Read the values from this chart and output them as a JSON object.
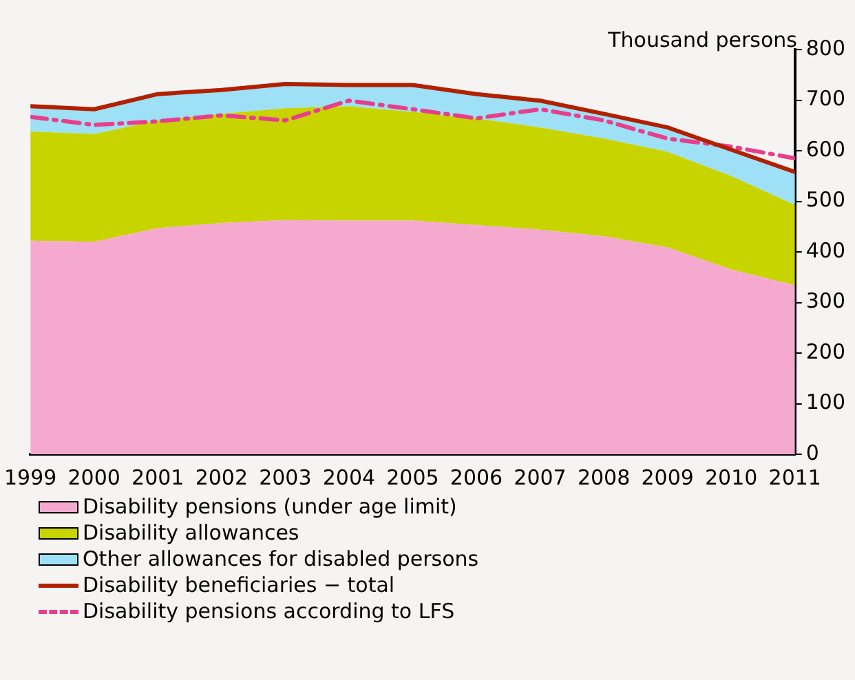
{
  "chart_data": {
    "type": "area",
    "ylabel": "Thousand persons",
    "stacked": true,
    "x": [
      1999,
      2000,
      2001,
      2002,
      2003,
      2004,
      2005,
      2006,
      2007,
      2008,
      2009,
      2010,
      2011
    ],
    "xlim": [
      1999,
      2011
    ],
    "xticks": [
      1999,
      2000,
      2001,
      2002,
      2003,
      2004,
      2005,
      2006,
      2007,
      2008,
      2009,
      2010,
      2011
    ],
    "ylim": [
      0,
      800
    ],
    "yticks": [
      0,
      100,
      200,
      300,
      400,
      500,
      600,
      700,
      800
    ],
    "grid": false,
    "legend": "bottom",
    "series": [
      {
        "name": "Disability pensions (under age limit)",
        "color": "#f5a9cf",
        "values": [
          422,
          420,
          447,
          457,
          463,
          462,
          462,
          453,
          444,
          431,
          409,
          365,
          334
        ]
      },
      {
        "name": "Disability allowances",
        "color": "#c8d400",
        "values": [
          216,
          213,
          213,
          216,
          221,
          226,
          215,
          211,
          202,
          193,
          189,
          185,
          159
        ]
      },
      {
        "name": "Other allowances for disabled persons",
        "color": "#9ee0f5",
        "values": [
          50,
          49,
          52,
          47,
          48,
          42,
          53,
          48,
          53,
          49,
          48,
          52,
          65
        ]
      },
      {
        "name": "Disability beneficiaries − total",
        "type": "line",
        "color": "#b22000",
        "line_style": "solid",
        "values": [
          688,
          682,
          712,
          720,
          732,
          730,
          730,
          712,
          699,
          673,
          646,
          602,
          558
        ]
      },
      {
        "name": "Disability pensions according to LFS",
        "type": "line",
        "color": "#e83e8c",
        "line_style": "dashed",
        "values": [
          667,
          651,
          658,
          670,
          660,
          699,
          682,
          664,
          682,
          660,
          624,
          608,
          585
        ]
      }
    ]
  }
}
